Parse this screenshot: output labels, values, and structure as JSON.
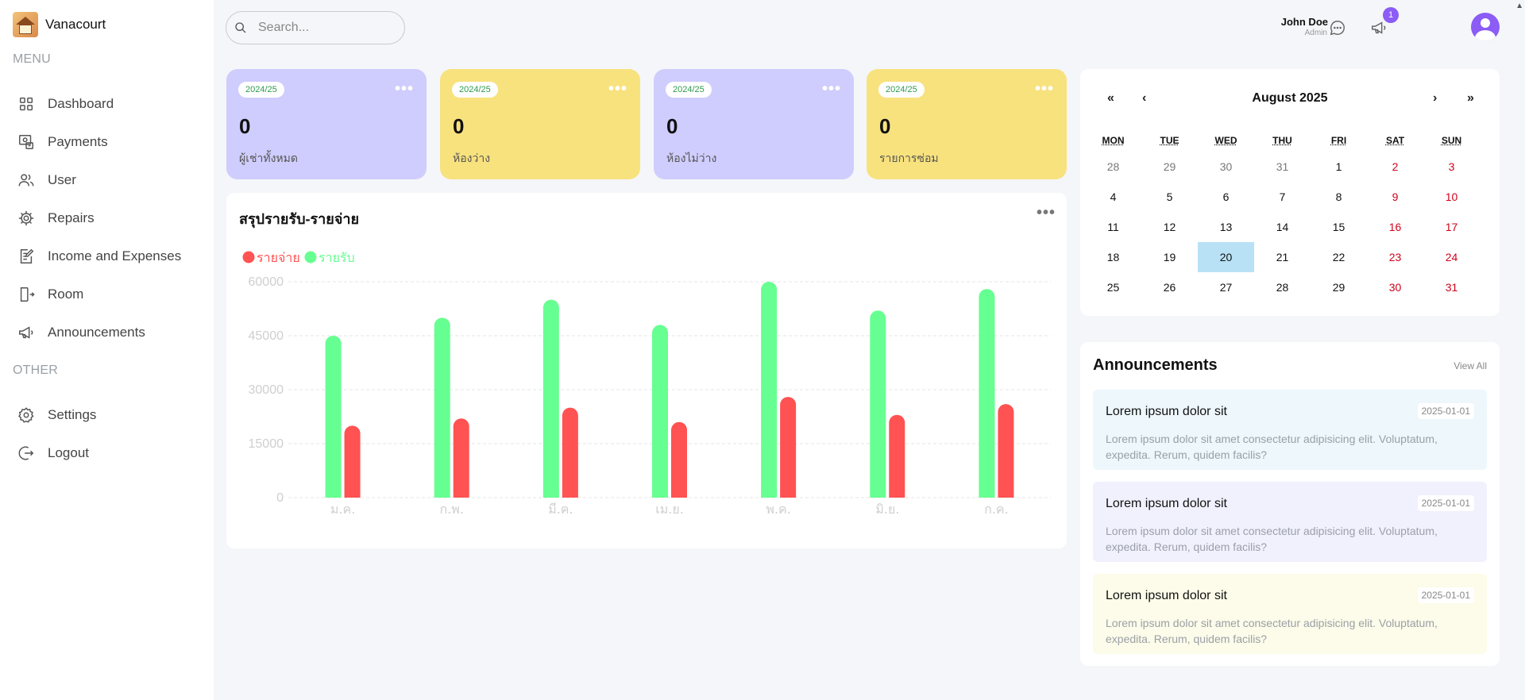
{
  "app": {
    "name": "Vanacourt"
  },
  "sidebar": {
    "menu_label": "MENU",
    "other_label": "OTHER",
    "items": [
      {
        "label": "Dashboard",
        "icon": "dashboard-icon"
      },
      {
        "label": "Payments",
        "icon": "payments-icon"
      },
      {
        "label": "User",
        "icon": "users-icon"
      },
      {
        "label": "Repairs",
        "icon": "gear-icon"
      },
      {
        "label": "Income and Expenses",
        "icon": "edit-document-icon"
      },
      {
        "label": "Room",
        "icon": "door-exit-icon"
      },
      {
        "label": "Announcements",
        "icon": "megaphone-icon"
      }
    ],
    "other_items": [
      {
        "label": "Settings",
        "icon": "settings-icon"
      },
      {
        "label": "Logout",
        "icon": "logout-icon"
      }
    ]
  },
  "header": {
    "search_placeholder": "Search...",
    "notification_count": "1",
    "user_name": "John Doe",
    "user_role": "Admin"
  },
  "stats": [
    {
      "tag": "2024/25",
      "value": "0",
      "label": "ผู้เช่าทั้งหมด",
      "color": "#cfcdfd"
    },
    {
      "tag": "2024/25",
      "value": "0",
      "label": "ห้องว่าง",
      "color": "#f8e27e"
    },
    {
      "tag": "2024/25",
      "value": "0",
      "label": "ห้องไม่ว่าง",
      "color": "#cfcdfd"
    },
    {
      "tag": "2024/25",
      "value": "0",
      "label": "รายการซ่อม",
      "color": "#f8e27e"
    }
  ],
  "chart_title": "สรุปรายรับ-รายจ่าย",
  "chart_data": {
    "type": "bar",
    "title": "สรุปรายรับ-รายจ่าย",
    "categories": [
      "ม.ค.",
      "ก.พ.",
      "มี.ค.",
      "เม.ย.",
      "พ.ค.",
      "มิ.ย.",
      "ก.ค."
    ],
    "series": [
      {
        "name": "รายรับ",
        "color": "#66ff91",
        "values": [
          45000,
          50000,
          55000,
          48000,
          60000,
          52000,
          58000
        ]
      },
      {
        "name": "รายจ่าย",
        "color": "#ff5252",
        "values": [
          20000,
          22000,
          25000,
          21000,
          28000,
          23000,
          26000
        ]
      }
    ],
    "legend_order": [
      "รายจ่าย",
      "รายรับ"
    ],
    "y_ticks": [
      0,
      15000,
      30000,
      45000,
      60000
    ],
    "ylim": [
      0,
      60000
    ],
    "grid": true,
    "legend_position": "top-left"
  },
  "calendar": {
    "title": "August 2025",
    "nav": {
      "prev_year": "«",
      "prev_month": "‹",
      "next_month": "›",
      "next_year": "»"
    },
    "weekdays": [
      "MON",
      "TUE",
      "WED",
      "THU",
      "FRI",
      "SAT",
      "SUN"
    ],
    "weeks": [
      [
        "28",
        "29",
        "30",
        "31",
        "1",
        "2",
        "3"
      ],
      [
        "4",
        "5",
        "6",
        "7",
        "8",
        "9",
        "10"
      ],
      [
        "11",
        "12",
        "13",
        "14",
        "15",
        "16",
        "17"
      ],
      [
        "18",
        "19",
        "20",
        "21",
        "22",
        "23",
        "24"
      ],
      [
        "25",
        "26",
        "27",
        "28",
        "29",
        "30",
        "31"
      ]
    ],
    "muted_first_week_count": 4,
    "selected_day": "20"
  },
  "announcements": {
    "title": "Announcements",
    "view_all": "View All",
    "items": [
      {
        "title": "Lorem ipsum dolor sit",
        "date": "2025-01-01",
        "body": "Lorem ipsum dolor sit amet consectetur adipisicing elit. Voluptatum, expedita. Rerum, quidem facilis?",
        "color": "#edf7fc"
      },
      {
        "title": "Lorem ipsum dolor sit",
        "date": "2025-01-01",
        "body": "Lorem ipsum dolor sit amet consectetur adipisicing elit. Voluptatum, expedita. Rerum, quidem facilis?",
        "color": "#f1f0fd"
      },
      {
        "title": "Lorem ipsum dolor sit",
        "date": "2025-01-01",
        "body": "Lorem ipsum dolor sit amet consectetur adipisicing elit. Voluptatum, expedita. Rerum, quidem facilis?",
        "color": "#fdfbe9"
      }
    ]
  }
}
